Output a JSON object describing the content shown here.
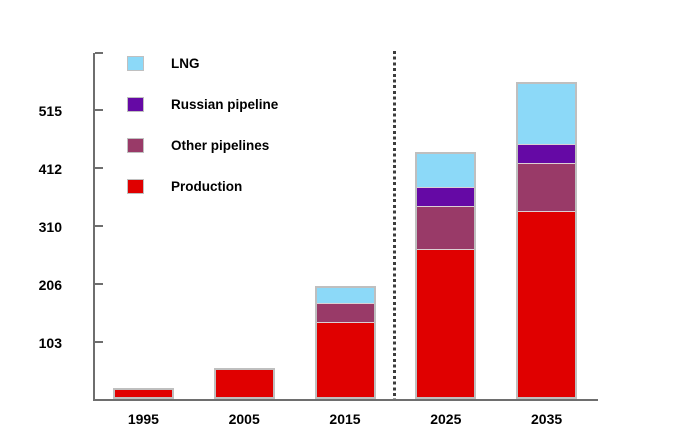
{
  "colors": {
    "lng": "#8CD9F8",
    "russian_pipeline": "#6509A5",
    "other_pipelines": "#993A68",
    "production": "#E00000",
    "axis": "#6E6E6E",
    "divider": "#3C3C3C",
    "bar_border": "#BFBFBF",
    "text": "#000000"
  },
  "chart_data": {
    "type": "bar",
    "stacked": true,
    "title": "",
    "xlabel": "",
    "ylabel": "",
    "categories": [
      "1995",
      "2005",
      "2015",
      "2025",
      "2035"
    ],
    "series": [
      {
        "name": "Production",
        "color_key": "production",
        "values": [
          17,
          52,
          136,
          265,
          332
        ]
      },
      {
        "name": "Other pipelines",
        "color_key": "other_pipelines",
        "values": [
          0,
          0,
          34,
          78,
          87
        ]
      },
      {
        "name": "Russian pipeline",
        "color_key": "russian_pipeline",
        "values": [
          0,
          0,
          0,
          33,
          34
        ]
      },
      {
        "name": "LNG",
        "color_key": "lng",
        "values": [
          0,
          0,
          29,
          62,
          110
        ]
      }
    ],
    "totals": [
      17,
      52,
      199,
      438,
      563
    ],
    "y_ticks": [
      103,
      206,
      310,
      412,
      515
    ],
    "ylim": [
      0,
      618
    ],
    "grid": false,
    "legend_position": "top-left-inside",
    "legend": [
      {
        "label": "LNG",
        "color_key": "lng"
      },
      {
        "label": "Russian pipeline",
        "color_key": "russian_pipeline"
      },
      {
        "label": "Other pipelines",
        "color_key": "other_pipelines"
      },
      {
        "label": "Production",
        "color_key": "production"
      }
    ],
    "divider_after_category": "2015"
  }
}
